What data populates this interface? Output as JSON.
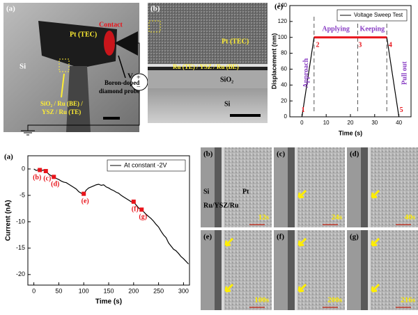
{
  "chart_data": [
    {
      "type": "line",
      "panel": "(c)",
      "xlabel": "Time (s)",
      "ylabel": "Displacement (nm)",
      "xlim": [
        -5,
        45
      ],
      "ylim": [
        0,
        140
      ],
      "xticks": [
        0,
        10,
        20,
        30,
        40
      ],
      "yticks": [
        0,
        20,
        40,
        60,
        80,
        100,
        120,
        140
      ],
      "series": [
        {
          "name": "Voltage Sweep Test",
          "color": "#000000",
          "x": [
            0,
            5,
            23,
            35,
            40
          ],
          "values": [
            0,
            100,
            100,
            100,
            0
          ]
        },
        {
          "color": "#e8141b",
          "x": [
            5,
            35
          ],
          "values": [
            100,
            100
          ]
        }
      ],
      "vlines": [
        5,
        23,
        35
      ],
      "legend": "upper right",
      "annotations": [
        {
          "text": "1",
          "x": 0.5,
          "y": 8,
          "color": "#e8141b"
        },
        {
          "text": "2",
          "x": 6.5,
          "y": 90,
          "color": "#e8141b"
        },
        {
          "text": "3",
          "x": 24,
          "y": 90,
          "color": "#e8141b"
        },
        {
          "text": "4",
          "x": 36.5,
          "y": 90,
          "color": "#e8141b"
        },
        {
          "text": "5",
          "x": 41,
          "y": 8,
          "color": "#e8141b"
        },
        {
          "text": "Approach",
          "x": 1.8,
          "y": 55,
          "color": "#8a3fc4",
          "vertical": true
        },
        {
          "text": "Applying",
          "x": 14,
          "y": 110,
          "color": "#8a3fc4"
        },
        {
          "text": "Keeping",
          "x": 29,
          "y": 110,
          "color": "#8a3fc4"
        },
        {
          "text": "Pull out",
          "x": 42.5,
          "y": 55,
          "color": "#8a3fc4",
          "vertical": true
        }
      ]
    },
    {
      "type": "line",
      "panel": "(a)",
      "xlabel": "Time (s)",
      "ylabel": "Current (nA)",
      "xlim": [
        -12,
        312
      ],
      "ylim": [
        -22,
        2.5
      ],
      "xticks": [
        0,
        50,
        100,
        150,
        200,
        250,
        300
      ],
      "yticks": [
        0,
        -5,
        -10,
        -15,
        -20
      ],
      "series": [
        {
          "name": "At constant -2V",
          "color": "#000000",
          "x": [
            0,
            5,
            10,
            15,
            20,
            25,
            30,
            35,
            40,
            45,
            50,
            55,
            60,
            65,
            70,
            75,
            80,
            85,
            90,
            95,
            100,
            105,
            110,
            115,
            120,
            125,
            130,
            135,
            140,
            145,
            150,
            155,
            160,
            165,
            170,
            175,
            180,
            185,
            190,
            195,
            200,
            205,
            210,
            215,
            220,
            225,
            230,
            235,
            240,
            245,
            250,
            255,
            260,
            265,
            270,
            275,
            280,
            285,
            290,
            295,
            300,
            305,
            310
          ],
          "values": [
            0,
            -0.3,
            -0.1,
            -0.3,
            -0.2,
            -0.5,
            -1.0,
            -1.3,
            -1.5,
            -1.8,
            -2.0,
            -2.3,
            -2.5,
            -2.6,
            -2.9,
            -3.2,
            -3.5,
            -3.8,
            -4.3,
            -4.6,
            -4.8,
            -4.0,
            -3.6,
            -3.4,
            -3.2,
            -3.0,
            -2.9,
            -3.1,
            -3.0,
            -3.4,
            -3.6,
            -3.9,
            -4.1,
            -4.4,
            -4.6,
            -5.0,
            -5.3,
            -5.6,
            -5.9,
            -6.2,
            -6.3,
            -6.8,
            -7.4,
            -7.7,
            -8.1,
            -8.6,
            -9.0,
            -9.4,
            -9.9,
            -10.5,
            -11.0,
            -11.8,
            -12.5,
            -13.0,
            -14.0,
            -14.6,
            -15.2,
            -15.5,
            -16.0,
            -16.6,
            -17.0,
            -17.5,
            -18.0
          ]
        }
      ],
      "markers": {
        "color": "#e8141b",
        "x": [
          12,
          24,
          40,
          100,
          200,
          216
        ],
        "values": [
          -0.2,
          -0.4,
          -1.5,
          -4.7,
          -6.2,
          -7.7
        ],
        "labels": [
          "(b)",
          "(c)",
          "(d)",
          "(e)",
          "(f)",
          "(g)"
        ]
      },
      "legend": "upper right"
    }
  ],
  "images": {
    "top_a": {
      "label": "(a)",
      "contact": "Contact",
      "pt": "Pt (TEC)",
      "si": "Si",
      "stack_1": "SiO₂ / Ru (BE) /",
      "stack_2": "YSZ / Ru (TE)",
      "probe_1": "Boron-doped",
      "probe_2": "diamond probe",
      "voltage": "V",
      "plus": "+",
      "minus": "−"
    },
    "top_b": {
      "label": "(b)",
      "pt": "Pt (TEC)",
      "stack": "Ru (TE) / YSZ / Ru (BE)",
      "sio2": "SiO₂",
      "si": "Si"
    },
    "tem_series": [
      {
        "label": "(b)",
        "time": "12s",
        "notes": [
          "Si",
          "Pt",
          "Ru/YSZ/Ru"
        ]
      },
      {
        "label": "(c)",
        "time": "24s"
      },
      {
        "label": "(d)",
        "time": "40s"
      },
      {
        "label": "(e)",
        "time": "100s"
      },
      {
        "label": "(f)",
        "time": "200s"
      },
      {
        "label": "(g)",
        "time": "216s"
      }
    ]
  }
}
